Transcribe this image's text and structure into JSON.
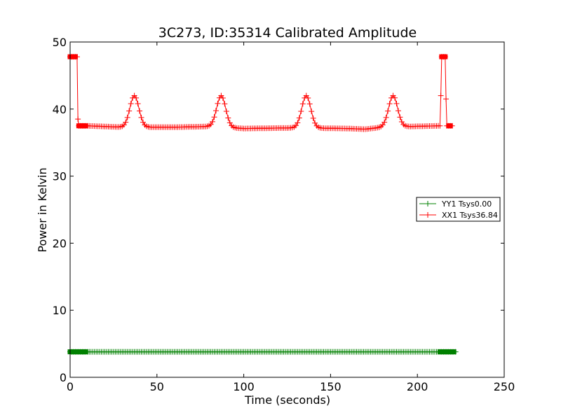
{
  "chart_data": {
    "type": "line",
    "title": "3C273, ID:35314 Calibrated Amplitude",
    "xlabel": "Time (seconds)",
    "ylabel": "Power in Kelvin",
    "xlim": [
      0,
      250
    ],
    "ylim": [
      0,
      50
    ],
    "xticks": [
      0,
      50,
      100,
      150,
      200,
      250
    ],
    "yticks": [
      0,
      10,
      20,
      30,
      40,
      50
    ],
    "grid": false,
    "legend_position": "center-right",
    "series": [
      {
        "name": "YY1 Tsys0.00",
        "color": "#008000",
        "marker": "+",
        "x_range": [
          0,
          222
        ],
        "x_step": 1,
        "baseline": 3.8,
        "segments": [
          {
            "x": [
              0,
              9
            ],
            "y": 3.8,
            "marker": "square"
          },
          {
            "x": [
              213,
              221
            ],
            "y": 3.8,
            "marker": "square"
          }
        ]
      },
      {
        "name": "XX1 Tsys36.84",
        "color": "#ff0000",
        "marker": "+",
        "points": [
          [
            0,
            47.8
          ],
          [
            1,
            47.8
          ],
          [
            2,
            47.8
          ],
          [
            3,
            47.8
          ],
          [
            4,
            47.8
          ],
          [
            4.5,
            38.5
          ],
          [
            5,
            37.5
          ],
          [
            6,
            37.5
          ],
          [
            7,
            37.5
          ],
          [
            8,
            37.5
          ],
          [
            9,
            37.5
          ]
        ],
        "baseline_points": [
          [
            10,
            37.5
          ],
          [
            30,
            37.3
          ],
          [
            60,
            37.3
          ],
          [
            80,
            37.4
          ],
          [
            100,
            37.1
          ],
          [
            130,
            37.2
          ],
          [
            160,
            37.1
          ],
          [
            170,
            37.0
          ],
          [
            180,
            37.3
          ],
          [
            212,
            37.5
          ]
        ],
        "peaks": [
          {
            "center": 37,
            "height": 42.0,
            "width": 2.6
          },
          {
            "center": 87,
            "height": 42.0,
            "width": 2.6
          },
          {
            "center": 136,
            "height": 42.0,
            "width": 2.6
          },
          {
            "center": 186,
            "height": 42.0,
            "width": 2.6
          }
        ],
        "tail_points": [
          [
            213,
            37.5
          ],
          [
            213.5,
            42.0
          ],
          [
            214,
            47.8
          ],
          [
            215,
            47.8
          ],
          [
            216,
            47.8
          ],
          [
            216.5,
            41.5
          ],
          [
            217,
            37.5
          ],
          [
            218,
            37.5
          ],
          [
            219,
            37.5
          ],
          [
            220,
            37.5
          ]
        ],
        "square_markers": [
          [
            0,
            47.8
          ],
          [
            1,
            47.8
          ],
          [
            2,
            47.8
          ],
          [
            3,
            47.8
          ],
          [
            5,
            37.5
          ],
          [
            6,
            37.5
          ],
          [
            7,
            37.5
          ],
          [
            8,
            37.5
          ],
          [
            9,
            37.5
          ],
          [
            214,
            47.8
          ],
          [
            215,
            47.8
          ],
          [
            216,
            47.8
          ],
          [
            218,
            37.5
          ],
          [
            219,
            37.5
          ]
        ]
      }
    ]
  }
}
